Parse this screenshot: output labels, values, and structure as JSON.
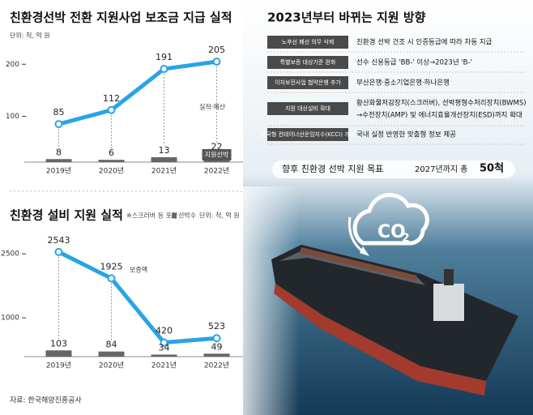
{
  "chart_data": [
    {
      "type": "line",
      "title": "친환경선박 전환 지원사업 보조금 지급 실적",
      "unit": "단위: 척, 억 원",
      "categories": [
        "2019년",
        "2020년",
        "2021년",
        "2022년"
      ],
      "series": [
        {
          "name": "실적·예산",
          "color": "#2aa3e6",
          "values": [
            85,
            112,
            191,
            205
          ]
        },
        {
          "name": "지원선박",
          "type": "bar",
          "axis": "y2",
          "color": "#666666",
          "values": [
            8,
            6,
            13,
            22
          ]
        }
      ],
      "ylim": [
        12,
        230
      ],
      "yticks": [
        100,
        200
      ],
      "y2lim": [
        0,
        300
      ]
    },
    {
      "type": "line",
      "title": "친환경 설비 지원 실적",
      "note": "※스크러버 등 포함",
      "unit": "단위: 척, 억 원",
      "categories": [
        "2019년",
        "2020년",
        "2021년",
        "2022년"
      ],
      "series": [
        {
          "name": "보증액",
          "color": "#2aa3e6",
          "values": [
            2543,
            1925,
            420,
            523
          ]
        },
        {
          "name": "선박수",
          "type": "bar",
          "axis": "y2",
          "color": "#666666",
          "values": [
            103,
            84,
            34,
            49
          ]
        }
      ],
      "ylim": [
        90,
        2940
      ],
      "yticks": [
        1000,
        2500
      ],
      "y2lim": [
        0,
        2000
      ]
    }
  ],
  "panel": {
    "title": "2023년부터 바뀌는 지원 방향",
    "rows": [
      {
        "tag": "노후선 폐선 의무 삭제",
        "text": [
          "친환경 선박 건조 시 인증등급에 따라 차등 지급"
        ]
      },
      {
        "tag": "특별보증 대상기준 완화",
        "text": [
          "선수 신용등급 'BB-' 이상→2023년 'B-'"
        ]
      },
      {
        "tag": "이차보전사업 협약은행 추가",
        "text": [
          "부산은행·중소기업은행·하나은행"
        ]
      },
      {
        "tag": "지원 대상설비 확대",
        "text": [
          "황산화물저감장치(스크러버), 선박평형수처리장치(BWMS)",
          "→수전장치(AMP) 및 에너지효율개선장치(ESD)까지 확대"
        ]
      },
      {
        "tag": "한국형 컨테이너선운임지수(KCCI) 개발",
        "text": [
          "국내 실정 반영한 맞춤형 정보 제공"
        ]
      }
    ],
    "goal": {
      "label": "향후 친환경 선박 지원 목표",
      "text": "2027년까지 총",
      "number": "50척"
    }
  },
  "icon": {
    "main": "CO",
    "sub": "2"
  },
  "source": "자료: 한국해양진흥공사"
}
